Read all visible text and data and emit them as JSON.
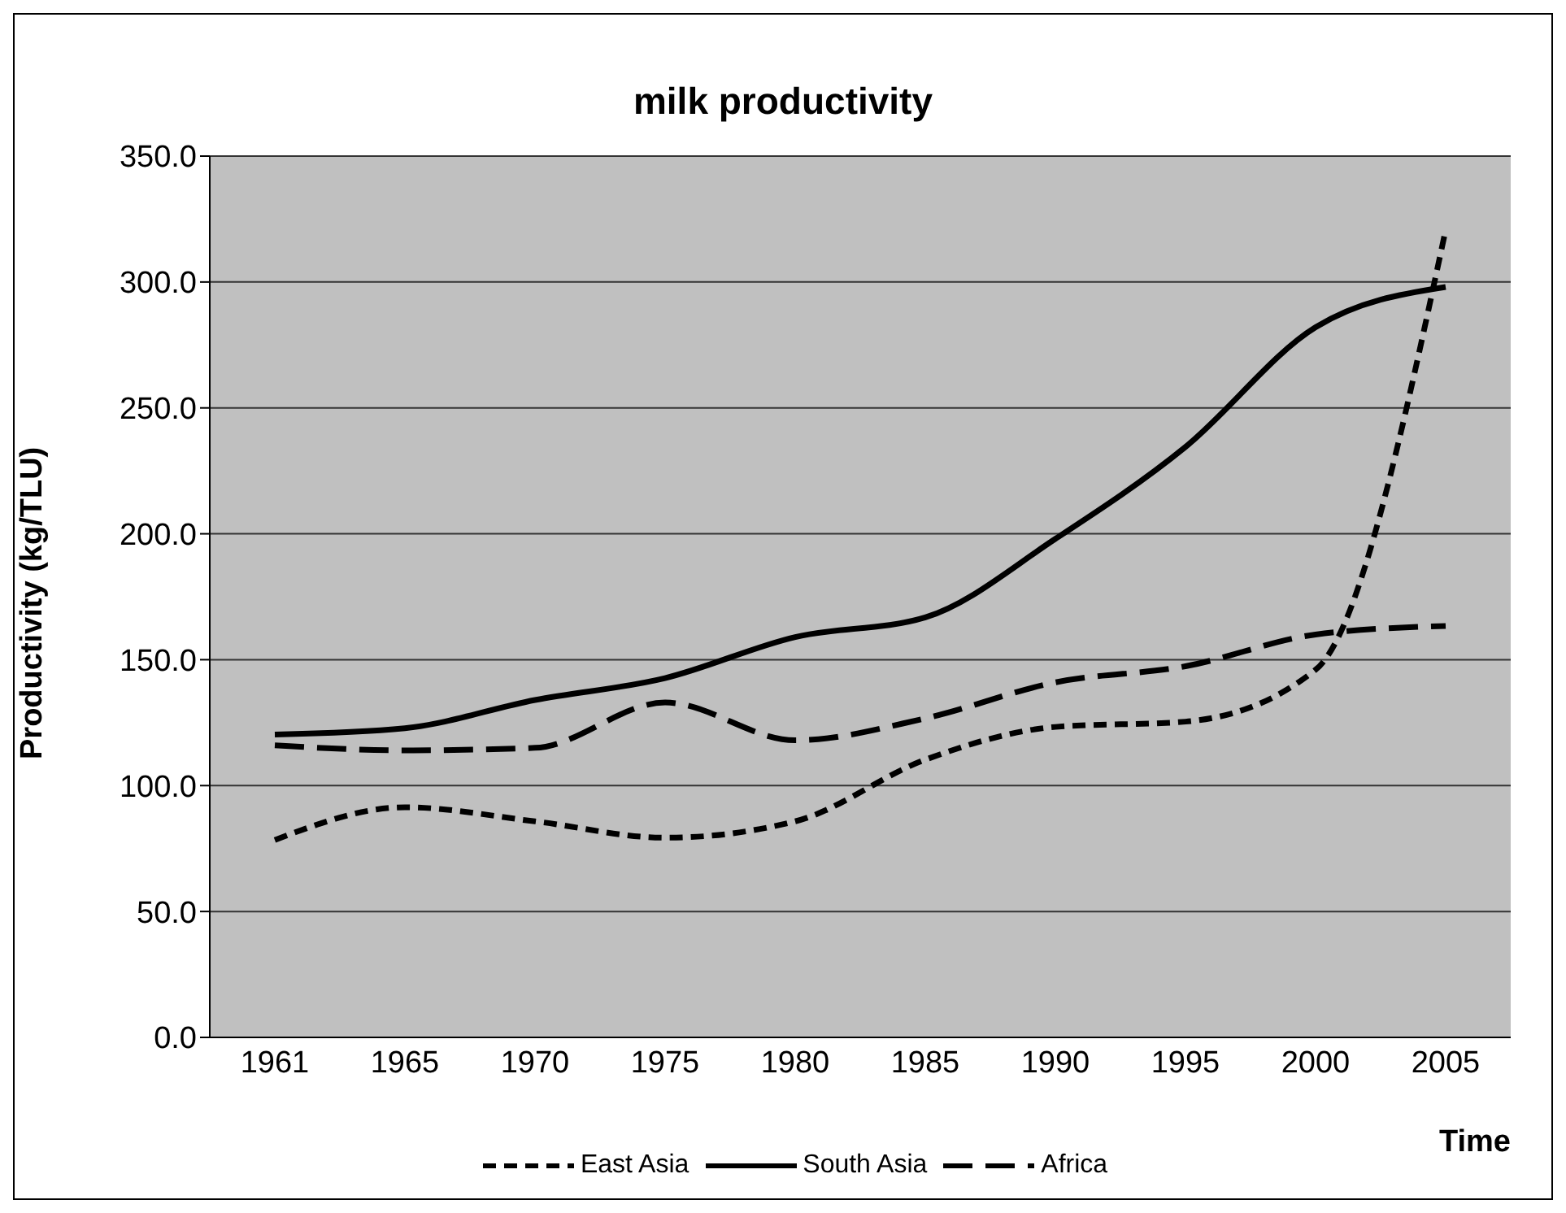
{
  "chart_data": {
    "type": "line",
    "title": "milk productivity",
    "xlabel": "Time",
    "ylabel": "Productivity (kg/TLU)",
    "categories": [
      "1961",
      "1965",
      "1970",
      "1975",
      "1980",
      "1985",
      "1990",
      "1995",
      "2000",
      "2005"
    ],
    "series": [
      {
        "name": "East Asia",
        "color": "#000000",
        "line_style": "dashed",
        "values": [
          78.4,
          91.4,
          85.8,
          79.3,
          85.8,
          110.3,
          123.3,
          125.4,
          146,
          320.7
        ]
      },
      {
        "name": "South Asia",
        "color": "#000000",
        "line_style": "solid",
        "values": [
          120.3,
          122.8,
          134,
          142.7,
          159,
          166.8,
          198,
          234.5,
          282,
          298
        ]
      },
      {
        "name": "Africa",
        "color": "#000000",
        "line_style": "long-dashed",
        "values": [
          116,
          114,
          115,
          133,
          118,
          126.7,
          141,
          147.4,
          160,
          163.4
        ]
      }
    ],
    "ylim": [
      0,
      350
    ],
    "yticks": [
      {
        "value": 0,
        "label": "0.0"
      },
      {
        "value": 50,
        "label": "50.0"
      },
      {
        "value": 100,
        "label": "100.0"
      },
      {
        "value": 150,
        "label": "150.0"
      },
      {
        "value": 200,
        "label": "200.0"
      },
      {
        "value": 250,
        "label": "250.0"
      },
      {
        "value": 300,
        "label": "300.0"
      },
      {
        "value": 350,
        "label": "350.0"
      }
    ],
    "grid": "y",
    "legend": "bottom",
    "marker": "none"
  }
}
